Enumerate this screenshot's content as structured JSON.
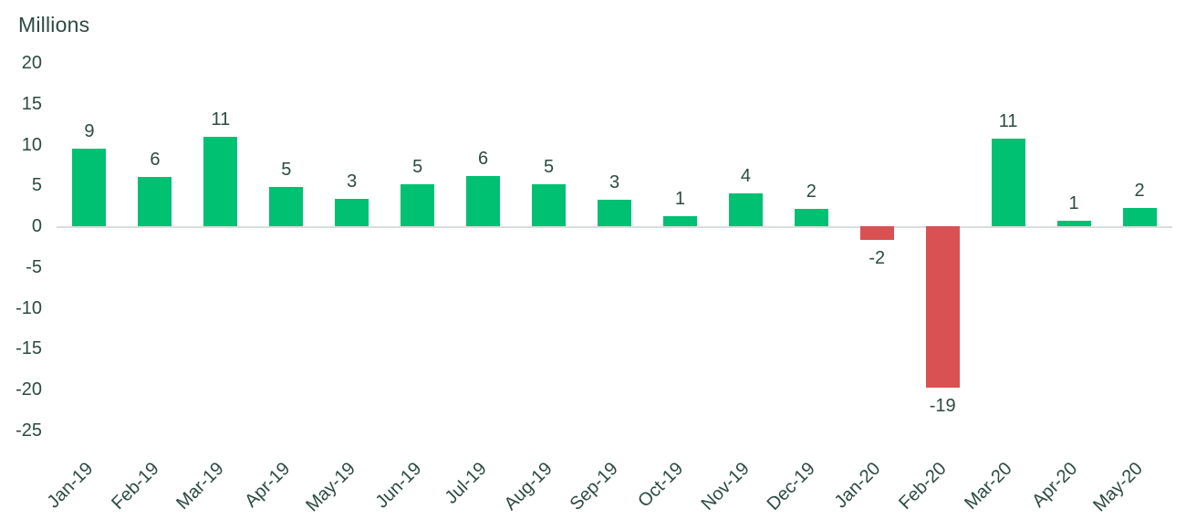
{
  "chart_data": {
    "type": "bar",
    "ylabel": "Millions",
    "xlabel": "",
    "categories": [
      "Jan-19",
      "Feb-19",
      "Mar-19",
      "Apr-19",
      "May-19",
      "Jun-19",
      "Jul-19",
      "Aug-19",
      "Sep-19",
      "Oct-19",
      "Nov-19",
      "Dec-19",
      "Jan-20",
      "Feb-20",
      "Mar-20",
      "Apr-20",
      "May-20"
    ],
    "values": [
      9,
      6,
      11,
      5,
      3,
      5,
      6,
      5,
      3,
      1,
      4,
      2,
      -2,
      -19,
      11,
      1,
      2
    ],
    "data_labels": [
      "9",
      "6",
      "11",
      "5",
      "3",
      "5",
      "6",
      "5",
      "3",
      "1",
      "4",
      "2",
      "-2",
      "-19",
      "11",
      "1",
      "2"
    ],
    "bar_values_visual": [
      9.5,
      6.0,
      11.0,
      4.8,
      3.4,
      5.1,
      6.1,
      5.2,
      3.2,
      1.2,
      4.0,
      2.1,
      -1.7,
      -19.7,
      10.7,
      0.65,
      2.3
    ],
    "y_ticks": [
      20,
      15,
      10,
      5,
      0,
      -5,
      -10,
      -15,
      -20,
      -25
    ],
    "ylim": [
      -25,
      20
    ],
    "grid": "none",
    "legend": "none",
    "x_tick_rotation_deg": -45,
    "colors": {
      "positive_bar": "#00C072",
      "negative_bar": "#D95153",
      "text": "#2C4A43",
      "axis_line": "#D9DEDC",
      "background": "#FFFFFF"
    }
  }
}
